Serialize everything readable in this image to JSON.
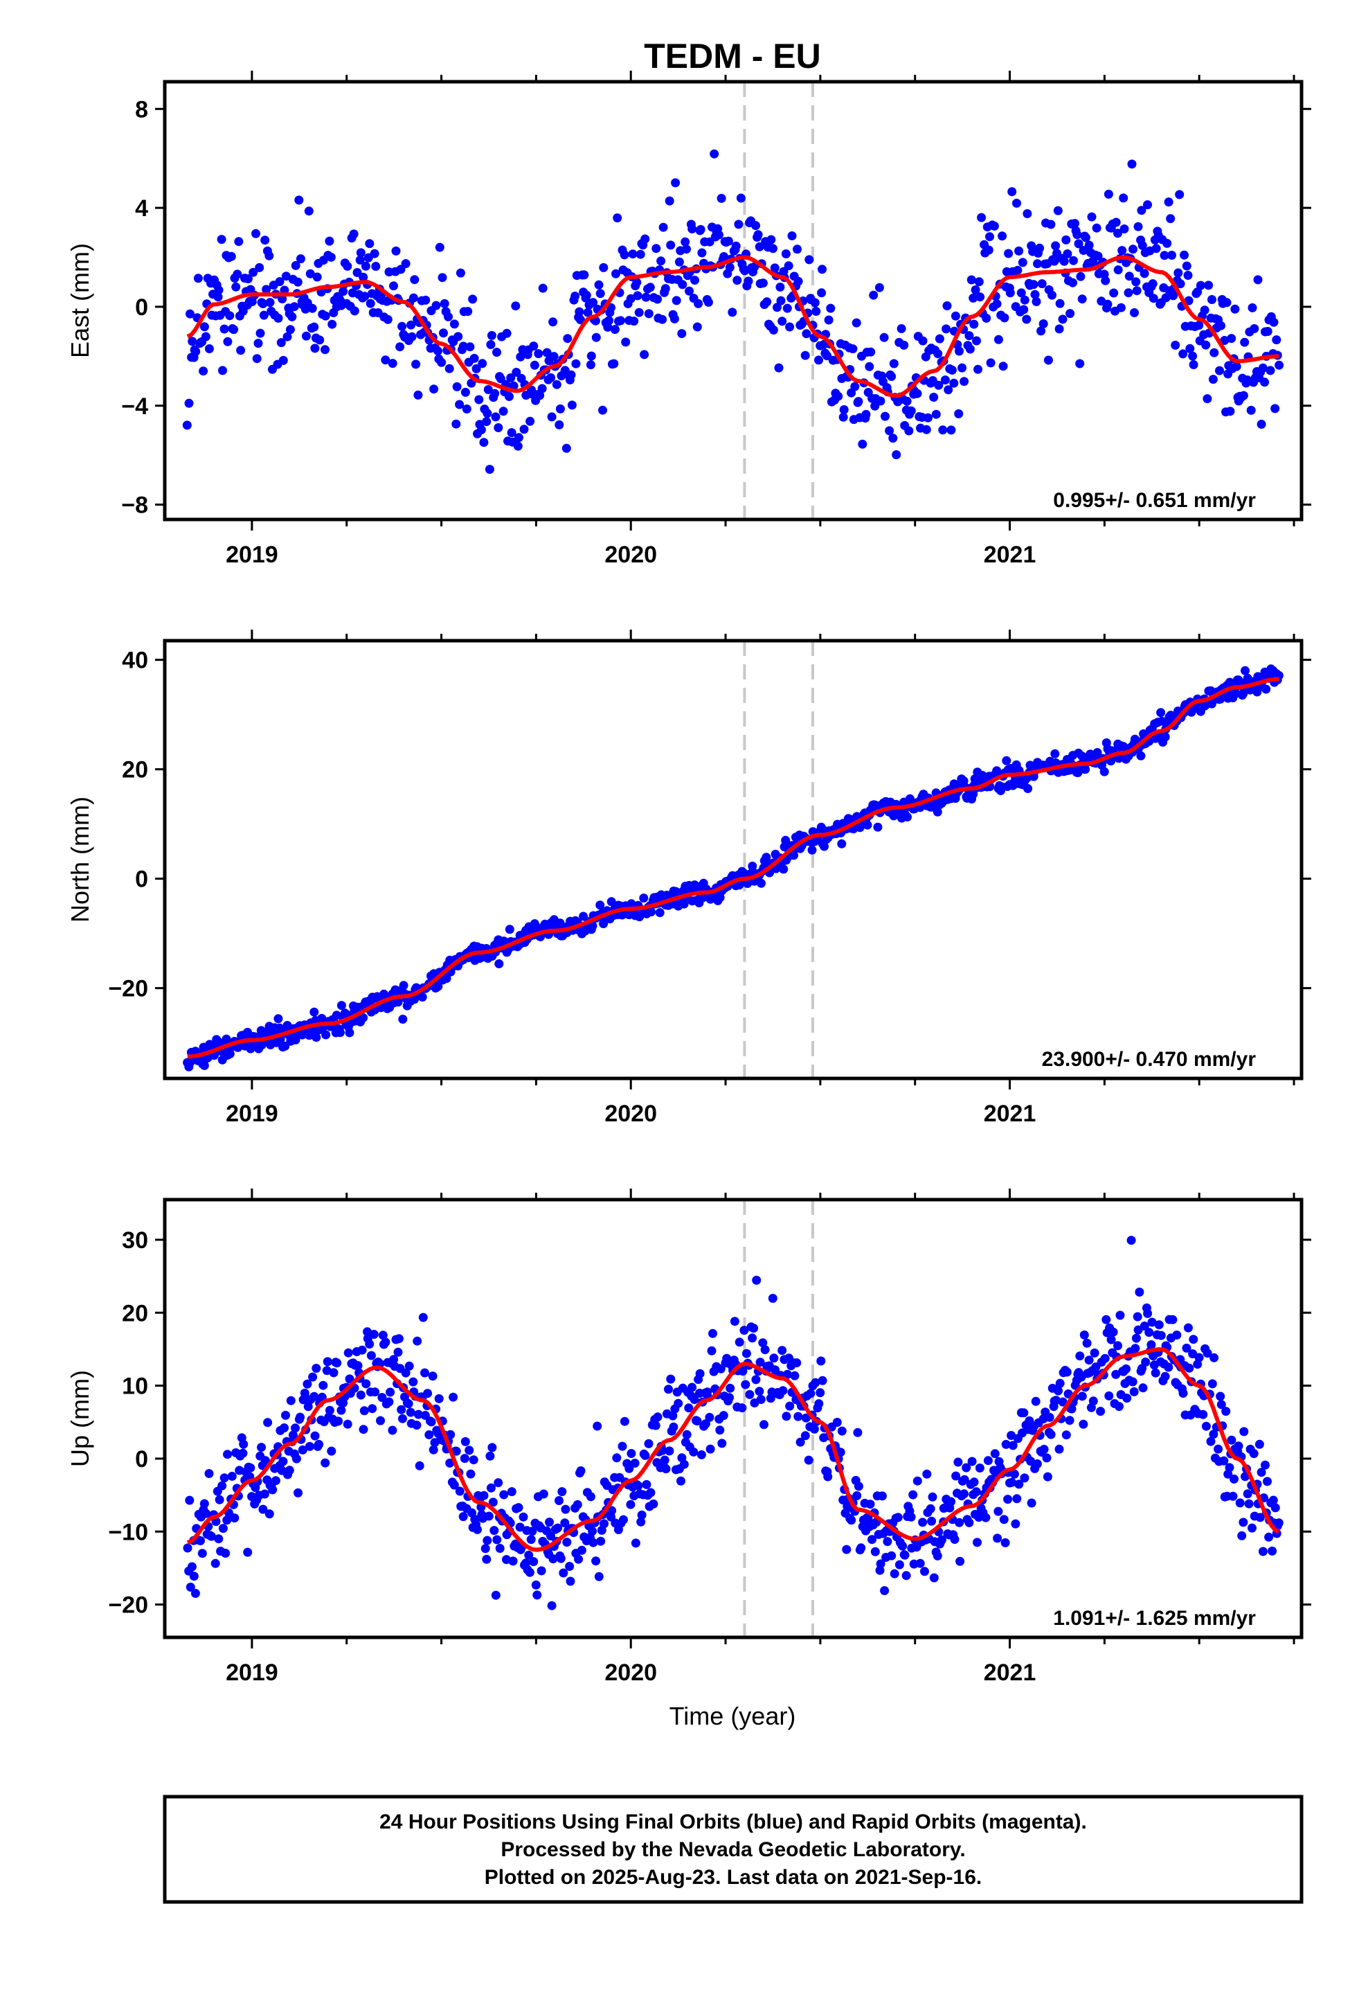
{
  "title": "TEDM - EU",
  "xlabel": "Time (year)",
  "caption": [
    "24 Hour Positions Using Final Orbits (blue) and Rapid Orbits (magenta).",
    "Processed by the Nevada Geodetic Laboratory.",
    "Plotted on 2025-Aug-23. Last data on 2021-Sep-16."
  ],
  "colors": {
    "points": "#0000ff",
    "fit": "#ff0000",
    "event_lines": "#c8c8c8",
    "frame": "#000000"
  },
  "chart_data": [
    {
      "type": "scatter",
      "ylabel": "East (mm)",
      "rate_label": "0.995+/- 0.651 mm/yr",
      "xlim": [
        2018.77,
        2021.77
      ],
      "ylim": [
        -8.6,
        9.1
      ],
      "xticks": [
        2019,
        2020,
        2021
      ],
      "xtick_labels": [
        "2019",
        "2020",
        "2021"
      ],
      "yticks": [
        -8,
        -4,
        0,
        4,
        8
      ],
      "ytick_labels": [
        "−8",
        "−4",
        "0",
        "4",
        "8"
      ],
      "event_lines": [
        2020.3,
        2020.48
      ],
      "series": [
        {
          "kind": "points",
          "x_start": 2018.83,
          "x_end": 2021.71,
          "count": 900,
          "noise_sd": 1.3
        },
        {
          "kind": "fit",
          "x": [
            2018.83,
            2018.9,
            2019.0,
            2019.1,
            2019.2,
            2019.3,
            2019.4,
            2019.5,
            2019.6,
            2019.7,
            2019.8,
            2019.9,
            2020.0,
            2020.1,
            2020.2,
            2020.3,
            2020.4,
            2020.5,
            2020.6,
            2020.7,
            2020.8,
            2020.9,
            2021.0,
            2021.1,
            2021.2,
            2021.3,
            2021.4,
            2021.5,
            2021.6,
            2021.71
          ],
          "y": [
            -1.2,
            0.1,
            0.5,
            0.5,
            0.8,
            1.0,
            0.2,
            -1.5,
            -3.0,
            -3.4,
            -2.4,
            -0.4,
            1.2,
            1.4,
            1.6,
            2.0,
            1.2,
            -1.2,
            -3.0,
            -3.6,
            -2.6,
            -0.4,
            1.2,
            1.4,
            1.5,
            2.0,
            1.4,
            -0.5,
            -2.2,
            -2.0
          ]
        }
      ]
    },
    {
      "type": "scatter",
      "ylabel": "North (mm)",
      "rate_label": "23.900+/- 0.470 mm/yr",
      "xlim": [
        2018.77,
        2021.77
      ],
      "ylim": [
        -36.5,
        43.5
      ],
      "xticks": [
        2019,
        2020,
        2021
      ],
      "xtick_labels": [
        "2019",
        "2020",
        "2021"
      ],
      "yticks": [
        -20,
        0,
        20,
        40
      ],
      "ytick_labels": [
        "−20",
        "0",
        "20",
        "40"
      ],
      "event_lines": [
        2020.3,
        2020.48
      ],
      "series": [
        {
          "kind": "points",
          "x_start": 2018.83,
          "x_end": 2021.71,
          "count": 950,
          "noise_sd": 1.0
        },
        {
          "kind": "fit",
          "x": [
            2018.83,
            2019.0,
            2019.2,
            2019.4,
            2019.6,
            2019.8,
            2020.0,
            2020.2,
            2020.3,
            2020.5,
            2020.7,
            2020.9,
            2021.0,
            2021.2,
            2021.3,
            2021.4,
            2021.5,
            2021.6,
            2021.71
          ],
          "y": [
            -32.5,
            -29.5,
            -26.5,
            -21.5,
            -13.5,
            -9.5,
            -5.5,
            -2.5,
            0.0,
            8.0,
            13.0,
            16.5,
            19.0,
            21.0,
            23.0,
            27.0,
            32.5,
            35.0,
            36.5
          ]
        }
      ]
    },
    {
      "type": "scatter",
      "ylabel": "Up (mm)",
      "rate_label": "1.091+/- 1.625 mm/yr",
      "xlim": [
        2018.77,
        2021.77
      ],
      "ylim": [
        -24.5,
        35.5
      ],
      "xticks": [
        2019,
        2020,
        2021
      ],
      "xtick_labels": [
        "2019",
        "2020",
        "2021"
      ],
      "yticks": [
        -20,
        -10,
        0,
        10,
        20,
        30
      ],
      "ytick_labels": [
        "−20",
        "−10",
        "0",
        "10",
        "20",
        "30"
      ],
      "event_lines": [
        2020.3,
        2020.48
      ],
      "series": [
        {
          "kind": "points",
          "x_start": 2018.83,
          "x_end": 2021.71,
          "count": 950,
          "noise_sd": 3.5
        },
        {
          "kind": "fit",
          "x": [
            2018.83,
            2018.9,
            2019.0,
            2019.1,
            2019.2,
            2019.33,
            2019.45,
            2019.6,
            2019.75,
            2019.9,
            2020.0,
            2020.1,
            2020.2,
            2020.3,
            2020.4,
            2020.5,
            2020.6,
            2020.75,
            2020.9,
            2021.0,
            2021.1,
            2021.2,
            2021.3,
            2021.4,
            2021.5,
            2021.6,
            2021.71
          ],
          "y": [
            -11.5,
            -8.0,
            -3.0,
            2.0,
            8.0,
            12.5,
            8.0,
            -6.0,
            -12.5,
            -8.5,
            -3.0,
            2.5,
            8.0,
            13.0,
            11.0,
            5.0,
            -7.0,
            -11.0,
            -6.5,
            -1.5,
            4.5,
            10.0,
            14.0,
            15.0,
            10.0,
            0.0,
            -10.0
          ]
        }
      ]
    }
  ]
}
